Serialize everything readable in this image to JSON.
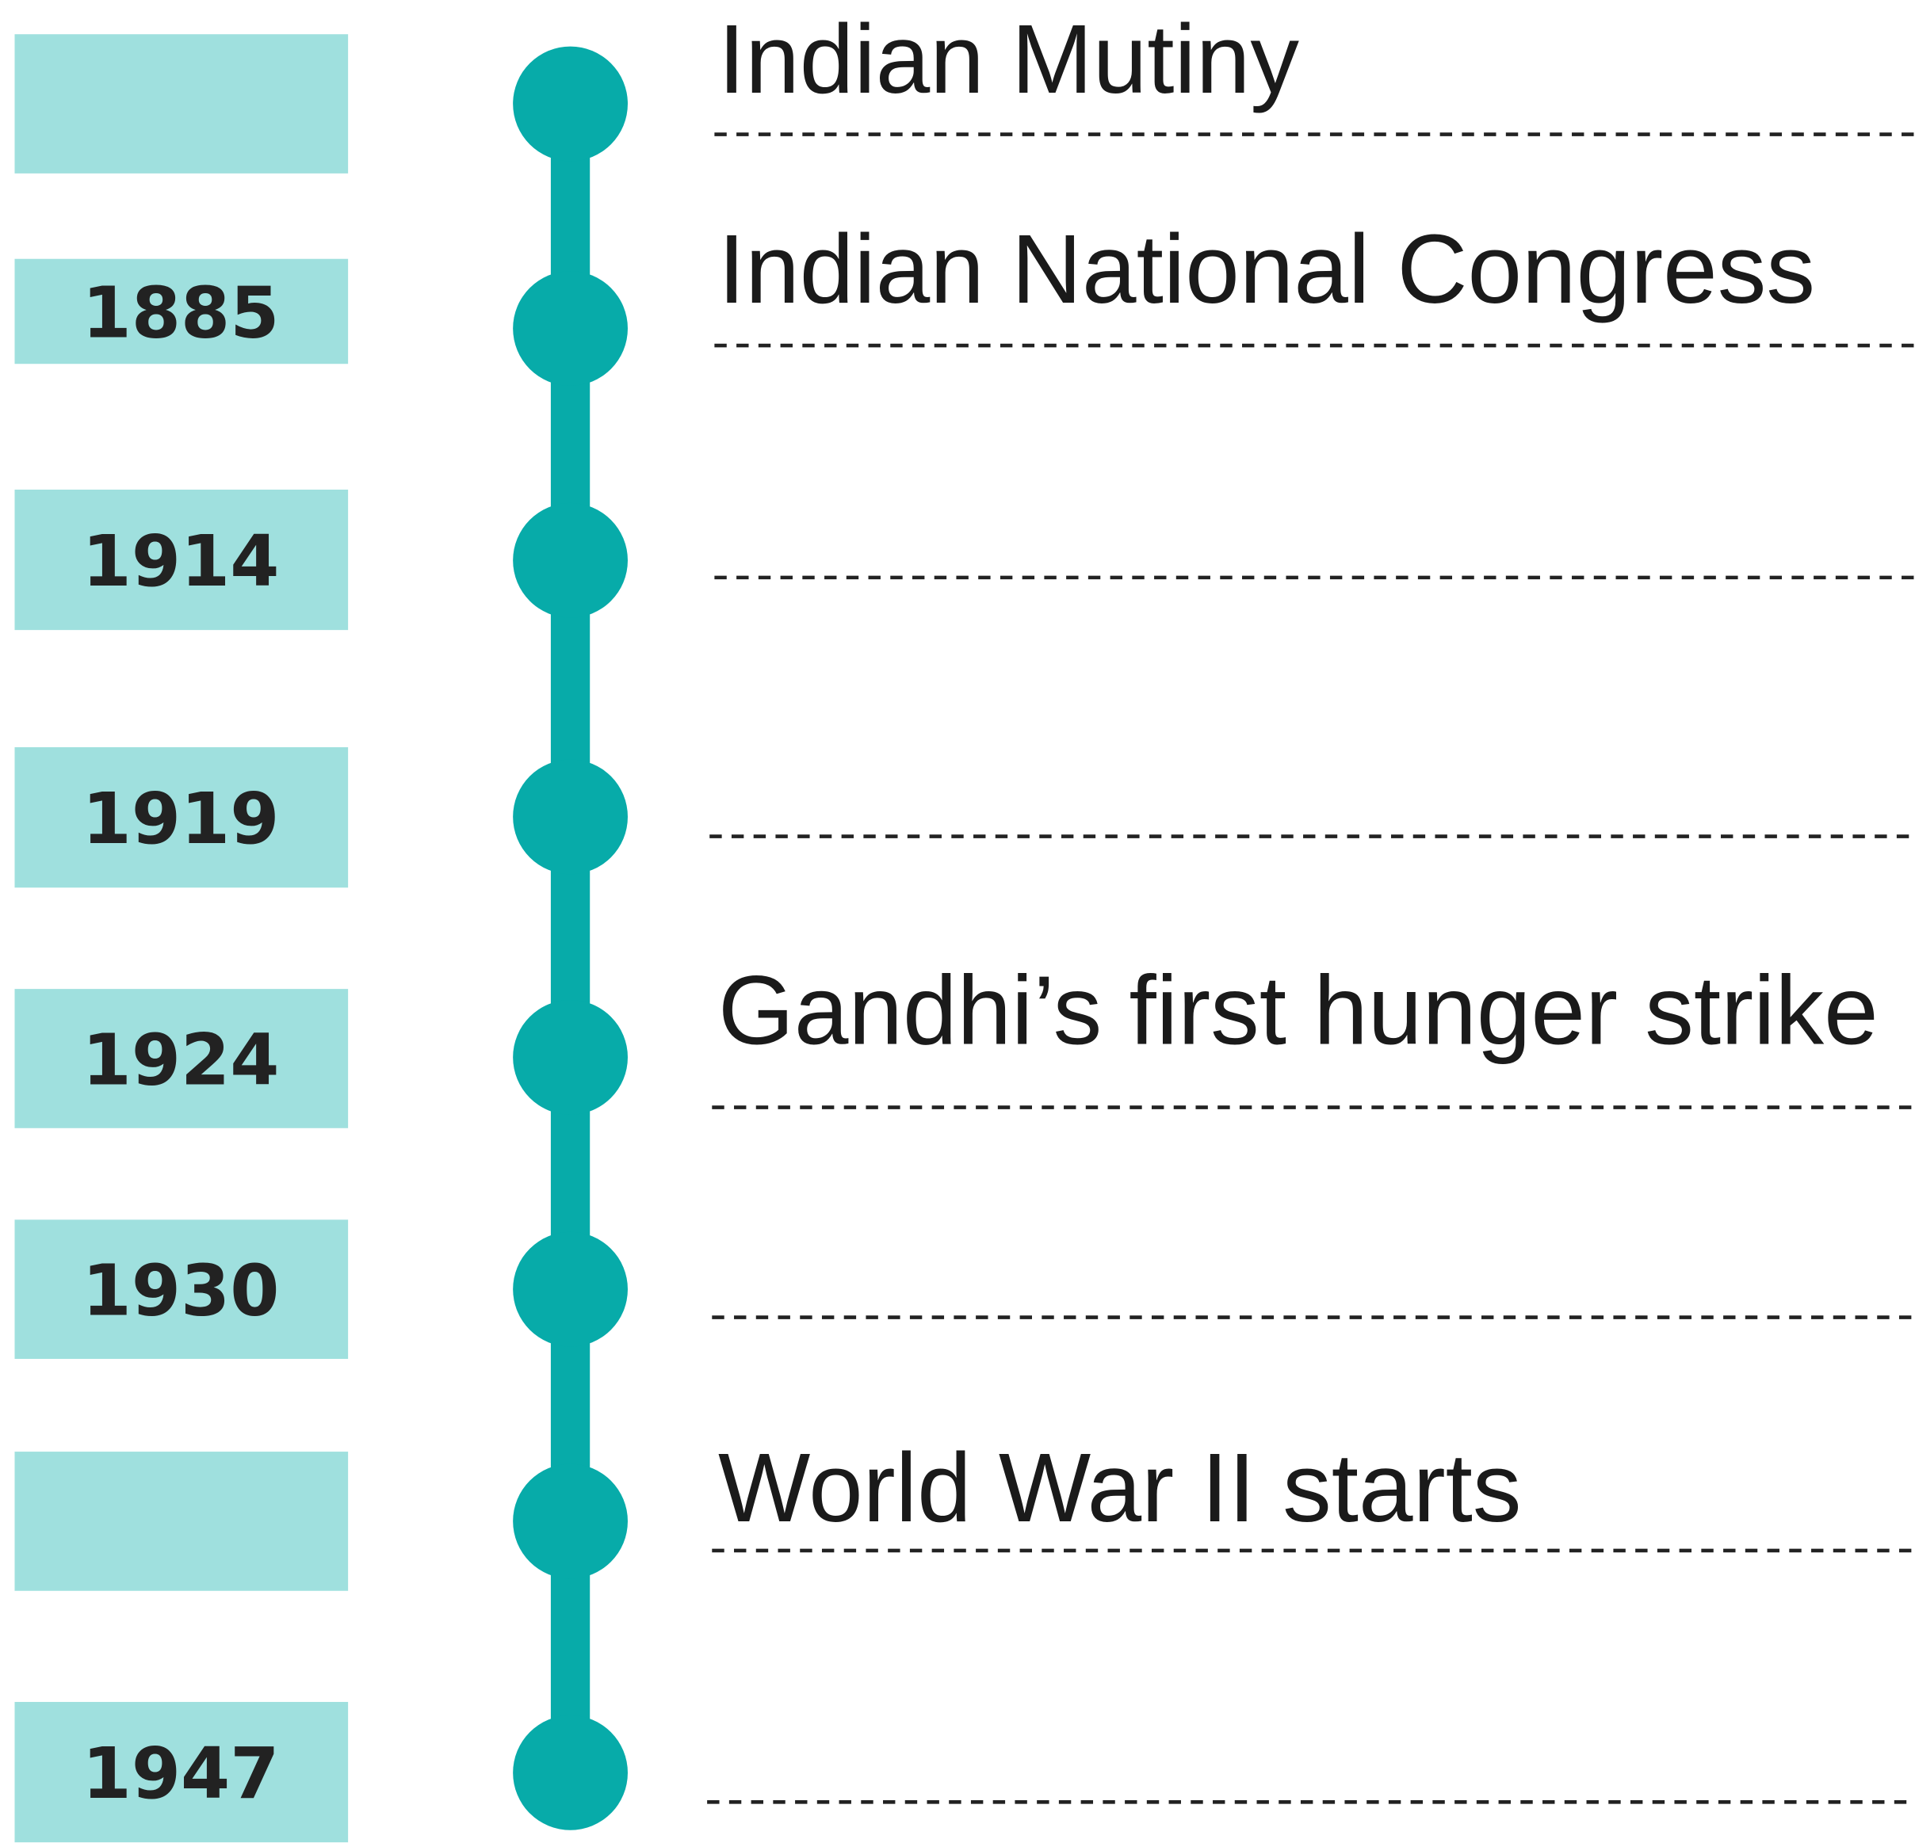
{
  "timeline": {
    "rows": [
      {
        "event": "Indian Mutiny"
      },
      {
        "year": "1885",
        "event": "Indian National Congress"
      },
      {
        "year": "1914"
      },
      {
        "year": "1919"
      },
      {
        "year": "1924",
        "event": "Gandhi’s first hunger strike"
      },
      {
        "year": "1930"
      },
      {
        "event": "World War II starts"
      },
      {
        "year": "1947"
      }
    ]
  }
}
